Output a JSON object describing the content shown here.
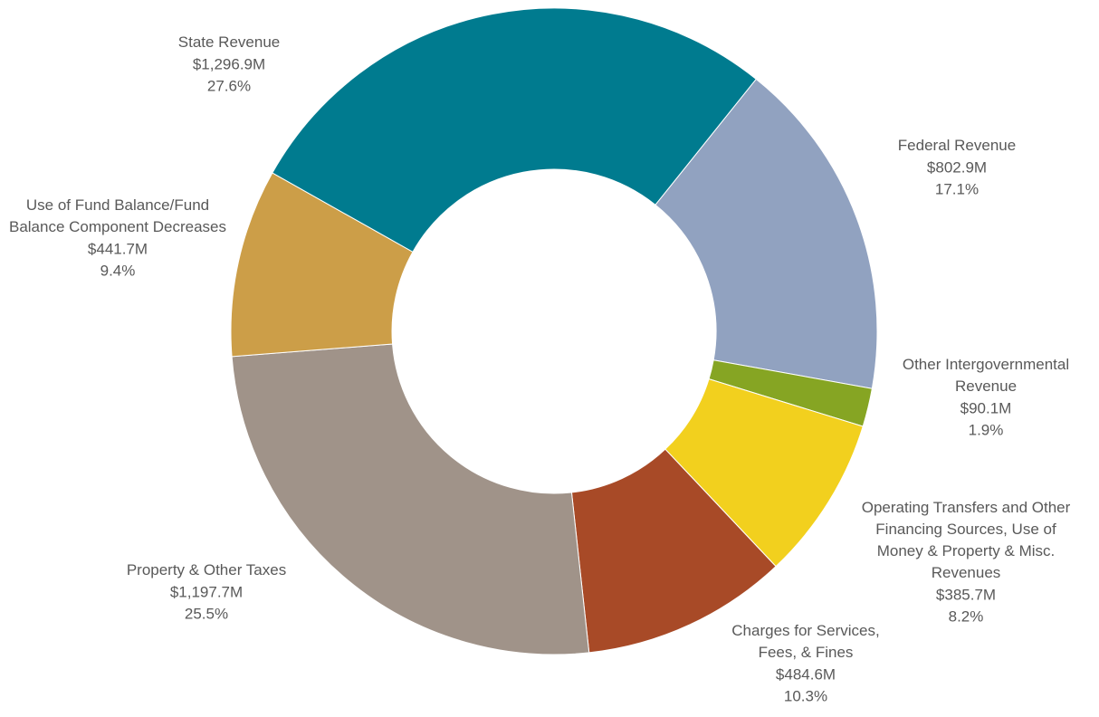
{
  "chart_data": {
    "type": "donut",
    "categories": [
      "Federal Revenue",
      "Other Intergovernmental Revenue",
      "Operating Transfers and Other Financing Sources, Use of Money & Property & Misc. Revenues",
      "Charges for Services, Fees, & Fines",
      "Property & Other Taxes",
      "Use of Fund Balance/Fund Balance Component Decreases",
      "State Revenue"
    ],
    "values": [
      802.9,
      90.1,
      385.7,
      484.6,
      1197.7,
      441.7,
      1296.9
    ],
    "value_labels": [
      "$802.9M",
      "$90.1M",
      "$385.7M",
      "$484.6M",
      "$1,197.7M",
      "$441.7M",
      "$1,296.9M"
    ],
    "percentages": [
      17.1,
      1.9,
      8.2,
      10.3,
      25.5,
      9.4,
      27.6
    ],
    "percentage_labels": [
      "17.1%",
      "1.9%",
      "8.2%",
      "10.3%",
      "25.5%",
      "9.4%",
      "27.6%"
    ],
    "colors": [
      "#91a2c0",
      "#86a523",
      "#f2d01e",
      "#a84a27",
      "#a09389",
      "#cc9e48",
      "#007b8f"
    ]
  }
}
